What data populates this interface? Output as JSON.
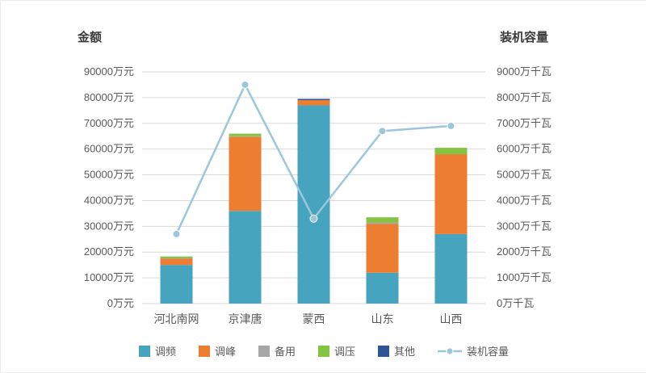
{
  "chart_data": {
    "type": "bar",
    "subtype": "stacked-bars-with-line-overlay",
    "categories": [
      "河北南网",
      "京津唐",
      "蒙西",
      "山东",
      "山西"
    ],
    "bar_series": [
      {
        "name": "调频",
        "color": "#47A4BE",
        "values": [
          15000,
          36000,
          77000,
          12000,
          27000
        ]
      },
      {
        "name": "调峰",
        "color": "#ED7D31",
        "values": [
          2400,
          28800,
          2000,
          19000,
          31000
        ]
      },
      {
        "name": "备用",
        "color": "#A6A6A6",
        "values": [
          300,
          200,
          0,
          500,
          0
        ]
      },
      {
        "name": "调压",
        "color": "#84C441",
        "values": [
          600,
          1000,
          0,
          2000,
          2500
        ]
      },
      {
        "name": "其他",
        "color": "#2F5597",
        "values": [
          0,
          0,
          500,
          0,
          0
        ]
      }
    ],
    "line_series": {
      "name": "装机容量",
      "color": "#9CC7DB",
      "values": [
        2700,
        8500,
        3300,
        6700,
        6900
      ]
    },
    "left_axis": {
      "title": "金额",
      "unit": "万元",
      "min": 0,
      "max": 90000,
      "step": 10000
    },
    "right_axis": {
      "title": "装机容量",
      "unit": "万千瓦",
      "min": 0,
      "max": 9000,
      "step": 1000
    },
    "grid": true,
    "legend_position": "bottom"
  }
}
